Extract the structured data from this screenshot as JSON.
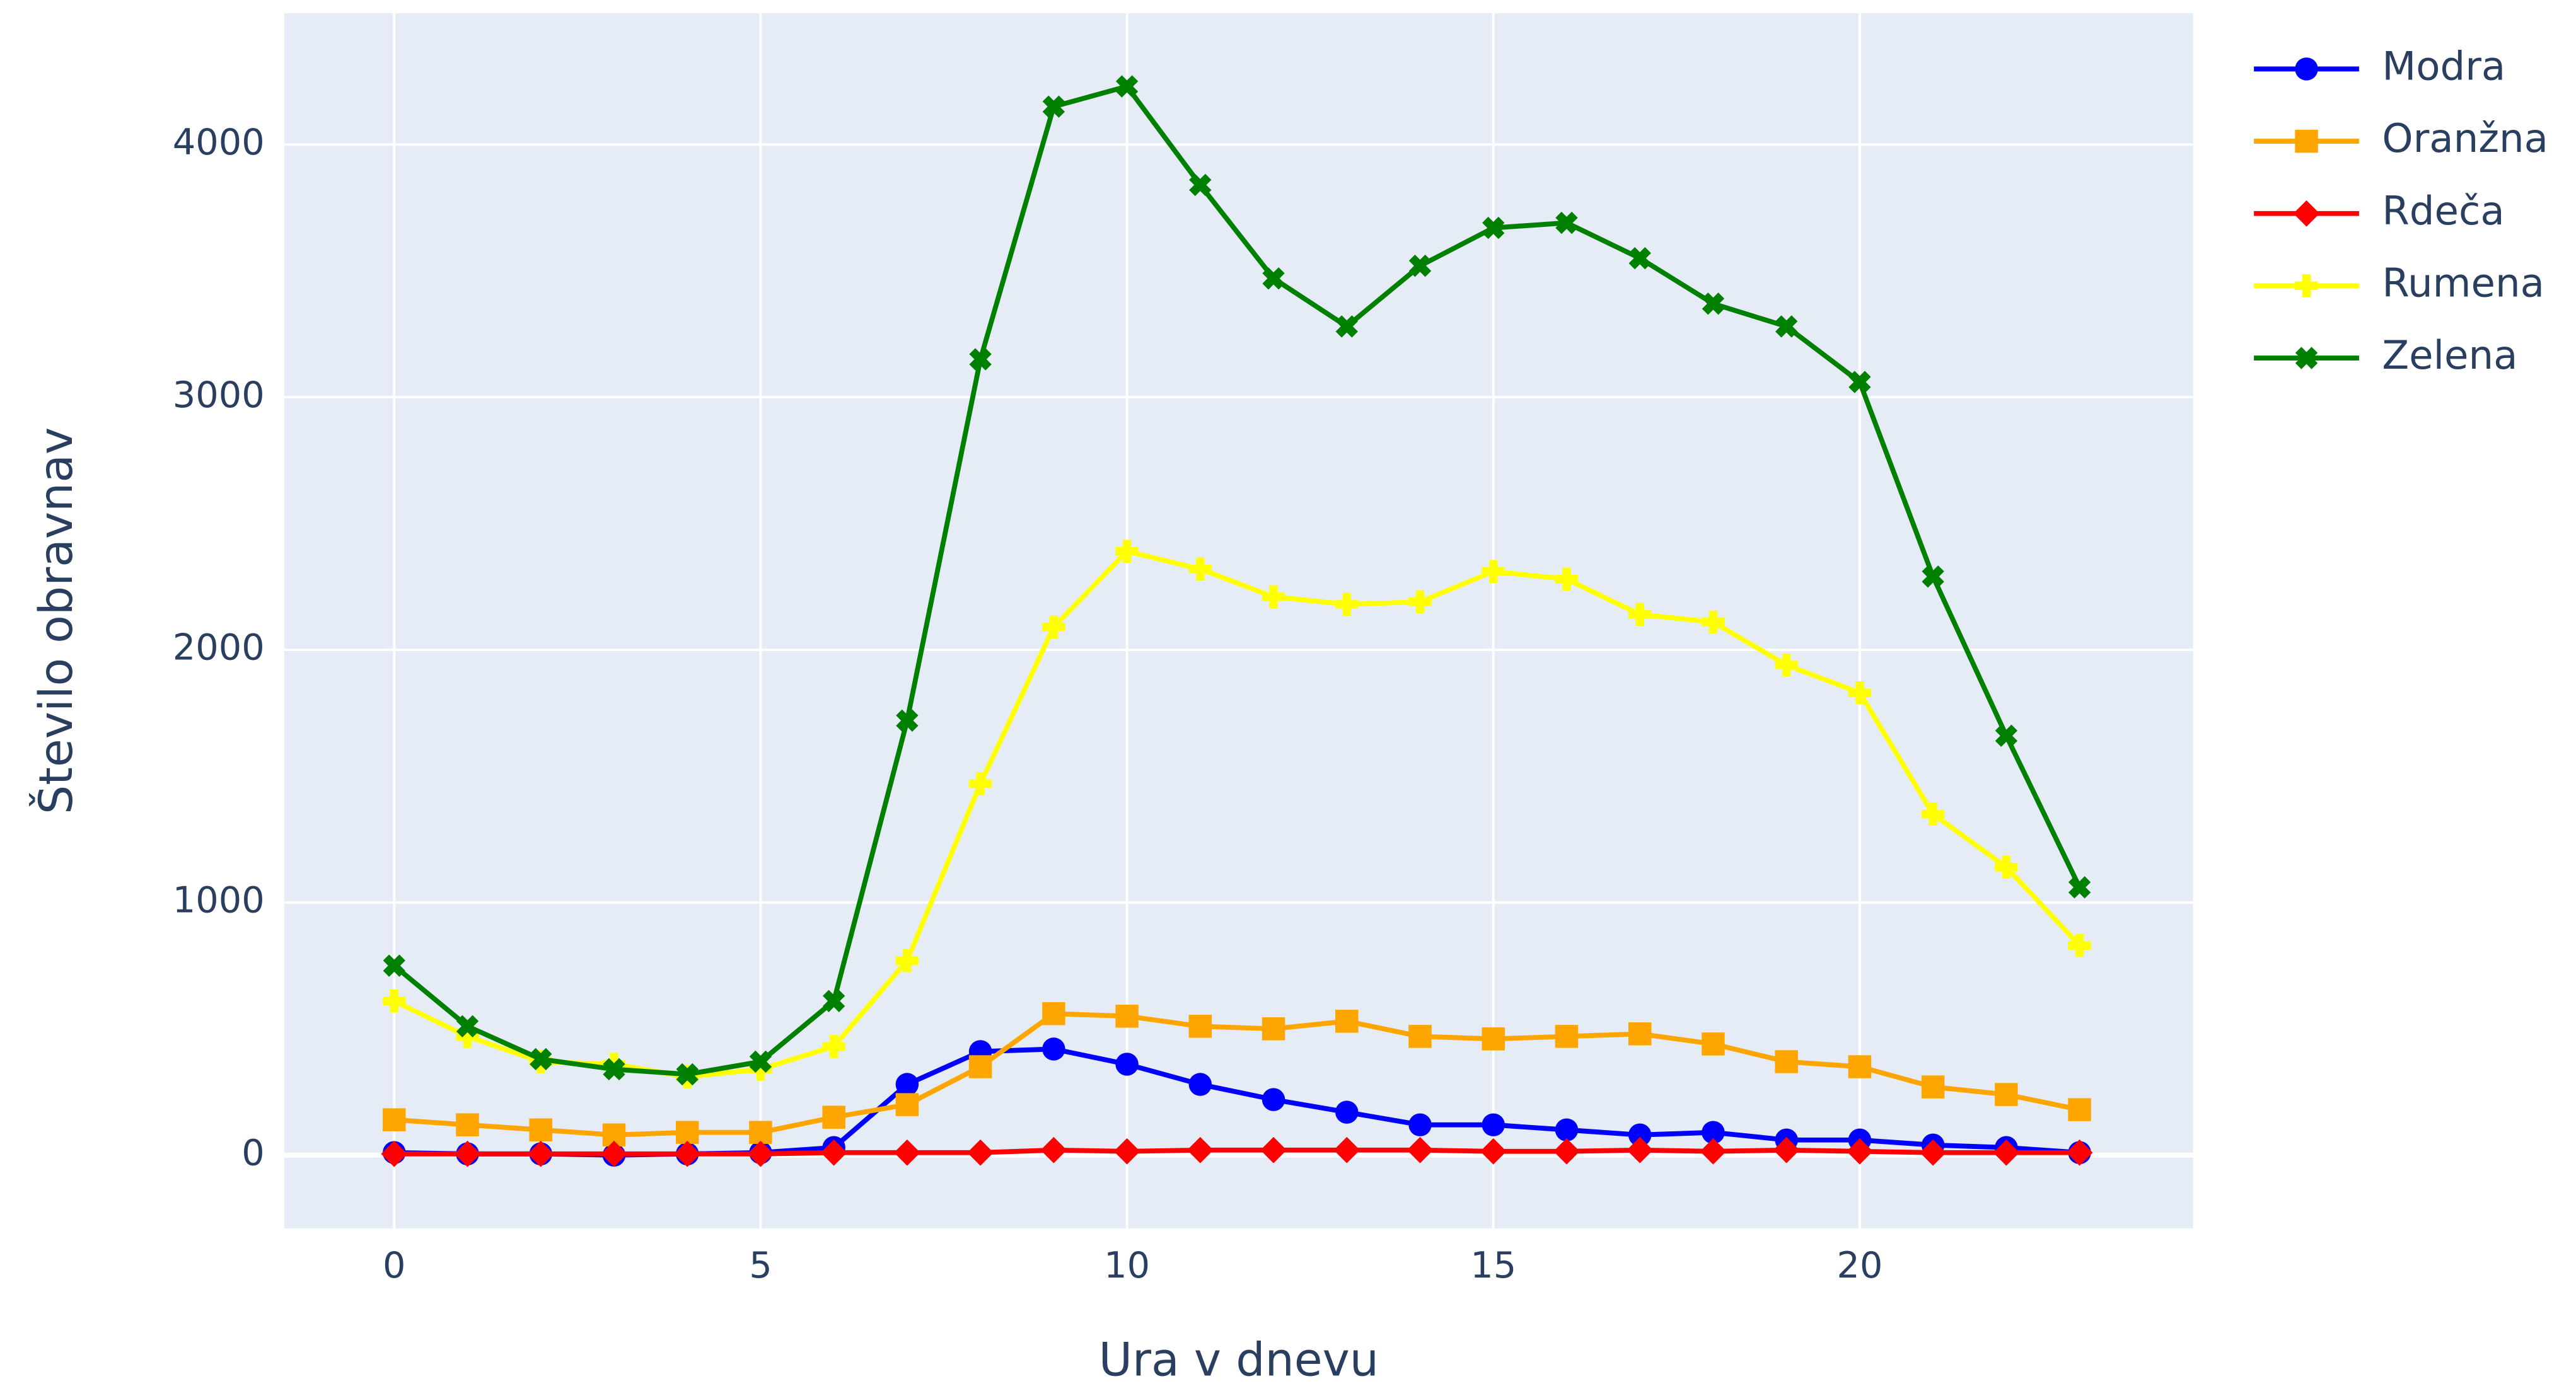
{
  "chart_data": {
    "type": "line",
    "x_label": "Ura v dnevu",
    "y_label": "Število obravnav",
    "x": [
      0,
      1,
      2,
      3,
      4,
      5,
      6,
      7,
      8,
      9,
      10,
      11,
      12,
      13,
      14,
      15,
      16,
      17,
      18,
      19,
      20,
      21,
      22,
      23
    ],
    "xlim": [
      -1.5,
      24.55
    ],
    "xticks": [
      0,
      5,
      10,
      15,
      20
    ],
    "ylim": [
      -290,
      4520
    ],
    "yticks": [
      0,
      1000,
      2000,
      3000,
      4000
    ],
    "grid": true,
    "legend": "outside-right",
    "series": [
      {
        "name": "Modra",
        "color": "#0000ff",
        "symbol": "circle",
        "values": [
          10,
          5,
          5,
          0,
          5,
          10,
          30,
          280,
          410,
          420,
          360,
          280,
          220,
          170,
          120,
          120,
          100,
          80,
          90,
          60,
          60,
          40,
          30,
          10
        ]
      },
      {
        "name": "Oranžna",
        "color": "#ffa500",
        "symbol": "square",
        "values": [
          140,
          120,
          100,
          80,
          90,
          90,
          150,
          200,
          350,
          560,
          550,
          510,
          500,
          530,
          470,
          460,
          470,
          480,
          440,
          370,
          350,
          270,
          240,
          180
        ]
      },
      {
        "name": "Rdeča",
        "color": "#ff0000",
        "symbol": "diamond",
        "values": [
          5,
          5,
          5,
          5,
          5,
          5,
          10,
          10,
          10,
          20,
          15,
          20,
          20,
          20,
          20,
          15,
          15,
          20,
          15,
          20,
          15,
          10,
          10,
          10
        ]
      },
      {
        "name": "Rumena",
        "color": "#ffff00",
        "symbol": "cross",
        "values": [
          610,
          470,
          370,
          360,
          310,
          340,
          430,
          770,
          1470,
          2090,
          2390,
          2320,
          2210,
          2180,
          2190,
          2310,
          2280,
          2140,
          2110,
          1940,
          1830,
          1350,
          1140,
          830
        ]
      },
      {
        "name": "Zelena",
        "color": "#008000",
        "symbol": "x",
        "values": [
          750,
          510,
          380,
          340,
          320,
          370,
          610,
          1720,
          3150,
          4150,
          4230,
          3840,
          3470,
          3280,
          3520,
          3670,
          3690,
          3550,
          3370,
          3280,
          3060,
          2290,
          1660,
          1060
        ]
      }
    ]
  }
}
